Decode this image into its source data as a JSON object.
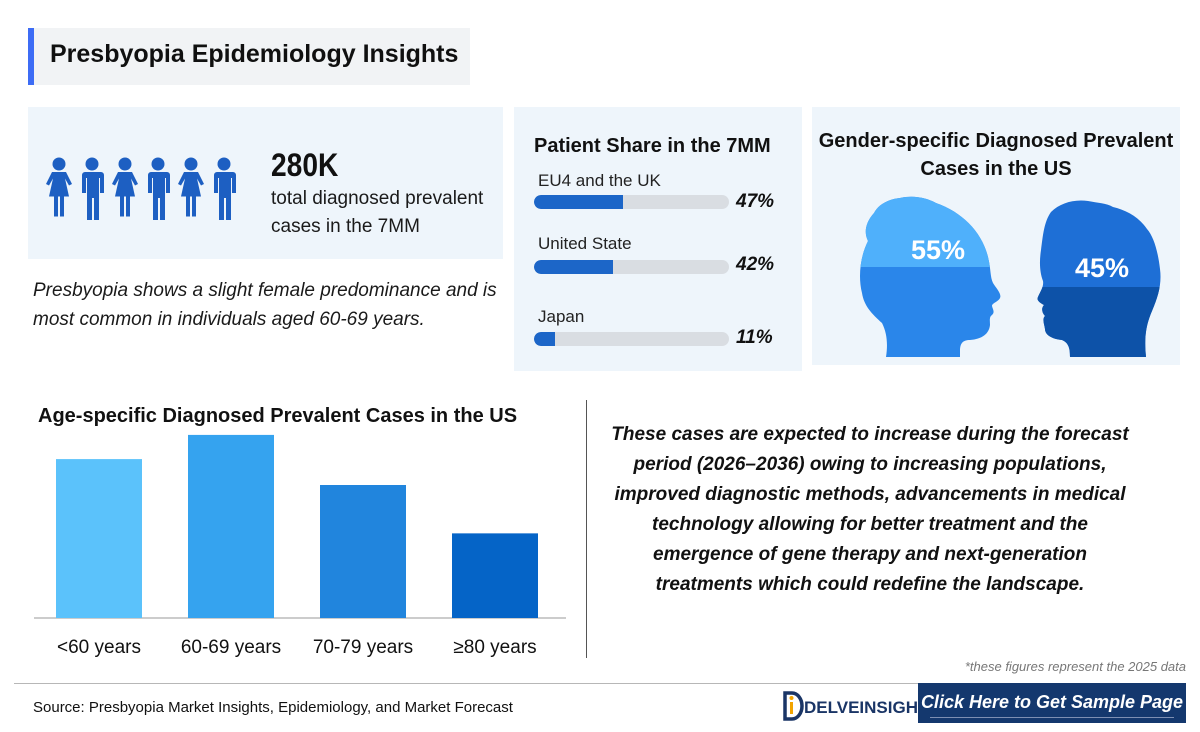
{
  "header": {
    "title": "Presbyopia Epidemiology Insights"
  },
  "stat": {
    "value": "280K",
    "description": "total diagnosed prevalent cases in the 7MM"
  },
  "note": "Presbyopia shows a slight female predominance and is most common in individuals aged 60-69 years.",
  "patient_share": {
    "title": "Patient Share in the 7MM",
    "items": [
      {
        "label": "EU4 and the UK",
        "percent": "47%",
        "value": 47
      },
      {
        "label": "United State",
        "percent": "42%",
        "value": 42
      },
      {
        "label": "Japan",
        "percent": "11%",
        "value": 11
      }
    ]
  },
  "gender": {
    "title": "Gender-specific Diagnosed Prevalent Cases in the US",
    "female_percent": "55%",
    "male_percent": "45%",
    "female_value": 55,
    "male_value": 45
  },
  "chart_data": {
    "type": "bar",
    "title": "Age-specific Diagnosed Prevalent Cases in the US",
    "categories": [
      "<60 years",
      "60-69 years",
      "70-79 years",
      "≥80 years"
    ],
    "values": [
      92,
      106,
      77,
      49
    ],
    "colors": [
      "#5bc2fb",
      "#35a3ef",
      "#2185dd",
      "#0564c7"
    ],
    "ylim": [
      0,
      110
    ],
    "grid": false,
    "xlabel": "",
    "ylabel": ""
  },
  "forecast_text": "These cases are expected to increase during the forecast period (2026–2036) owing to increasing populations, improved diagnostic methods, advancements in medical technology allowing for better treatment and the emergence of gene therapy and next-generation treatments which could redefine the landscape.",
  "footnote": "*these figures represent the 2025 data",
  "source": "Source: Presbyopia Market Insights, Epidemiology, and Market Forecast",
  "brand": {
    "name": "DELVEINSIGHT"
  },
  "cta": {
    "label": "Click Here to Get Sample Page"
  },
  "colors": {
    "accent": "#3d6cf5",
    "bar_fill": "#1c66c8",
    "card_bg": "#eef5fb",
    "cta_bg": "#14386e",
    "head_female": "#2a86ea",
    "head_male": "#1762c6"
  }
}
